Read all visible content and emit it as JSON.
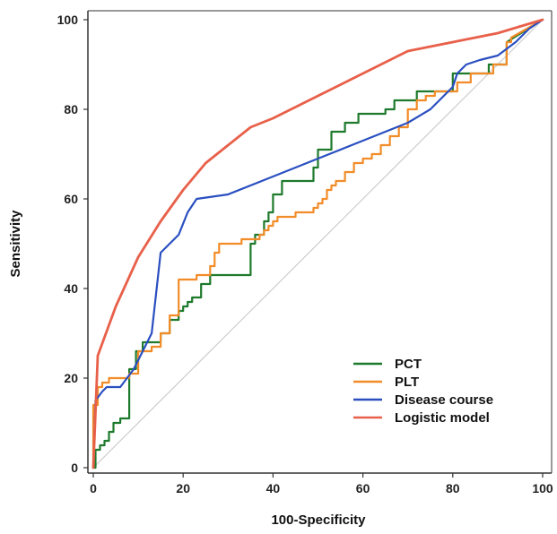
{
  "chart_data": {
    "type": "line",
    "title": "",
    "xlabel": "100-Specificity",
    "ylabel": "Sensitivity",
    "xlim": [
      0,
      100
    ],
    "ylim": [
      0,
      100
    ],
    "xticks": [
      "0",
      "20",
      "40",
      "60",
      "80",
      "100"
    ],
    "yticks": [
      "0",
      "20",
      "40",
      "60",
      "80",
      "100"
    ],
    "grid": false,
    "legend_position": "bottom-right",
    "reference_line": {
      "x": [
        0,
        100
      ],
      "y": [
        0,
        100
      ],
      "color": "#cccccc"
    },
    "series": [
      {
        "name": "PCT",
        "color": "#1e7a2c",
        "x": [
          0,
          0.5,
          0.5,
          1.5,
          1.5,
          2.5,
          2.5,
          3.5,
          3.5,
          4.5,
          4.5,
          6,
          6,
          8,
          8,
          9.5,
          9.5,
          11,
          11,
          15,
          15,
          17,
          17,
          19,
          19,
          20,
          20,
          21,
          21,
          22,
          22,
          24,
          24,
          26,
          26,
          27,
          27,
          35,
          35,
          36,
          36,
          38,
          38,
          39,
          39,
          40,
          40,
          42,
          42,
          49,
          49,
          50,
          50,
          53,
          53,
          56,
          56,
          59,
          59,
          65,
          65,
          67,
          67,
          72,
          72,
          75,
          75,
          80,
          80,
          88,
          88,
          92,
          92,
          100
        ],
        "y": [
          0,
          0,
          4,
          4,
          5,
          5,
          6,
          6,
          8,
          8,
          10,
          10,
          11,
          11,
          22,
          22,
          26,
          26,
          28,
          28,
          30,
          30,
          33,
          33,
          35,
          35,
          36,
          36,
          37,
          37,
          38,
          38,
          41,
          41,
          43,
          43,
          43,
          43,
          50,
          50,
          52,
          52,
          55,
          55,
          57,
          57,
          61,
          61,
          64,
          64,
          67,
          67,
          71,
          71,
          75,
          75,
          77,
          77,
          79,
          79,
          80,
          80,
          82,
          82,
          84,
          84,
          84,
          84,
          88,
          88,
          90,
          90,
          95,
          100
        ]
      },
      {
        "name": "PLT",
        "color": "#f28c28",
        "x": [
          0,
          0,
          1,
          1,
          2,
          2,
          3.5,
          3.5,
          8,
          8,
          10,
          10,
          13,
          13,
          15,
          15,
          17,
          17,
          19,
          19,
          23,
          23,
          26,
          26,
          27,
          27,
          28,
          28,
          33,
          33,
          37,
          37,
          38,
          38,
          39,
          39,
          40,
          40,
          41,
          41,
          43,
          43,
          45,
          45,
          49,
          49,
          50,
          50,
          51,
          51,
          52,
          52,
          53,
          53,
          54,
          54,
          56,
          56,
          58,
          58,
          60,
          60,
          62,
          62,
          64,
          64,
          66,
          66,
          68,
          68,
          70,
          70,
          72,
          72,
          74,
          74,
          76,
          76,
          81,
          81,
          84,
          84,
          89,
          89,
          92,
          92,
          93,
          93,
          100
        ],
        "y": [
          0,
          14,
          14,
          18,
          18,
          19,
          19,
          20,
          20,
          21,
          21,
          26,
          26,
          27,
          27,
          30,
          30,
          34,
          34,
          42,
          42,
          43,
          43,
          45,
          45,
          48,
          48,
          50,
          50,
          51,
          51,
          52,
          52,
          53,
          53,
          54,
          54,
          55,
          55,
          56,
          56,
          56,
          56,
          57,
          57,
          58,
          58,
          59,
          59,
          60,
          60,
          62,
          62,
          63,
          63,
          64,
          64,
          66,
          66,
          68,
          68,
          69,
          69,
          70,
          70,
          72,
          72,
          74,
          74,
          76,
          76,
          80,
          80,
          82,
          82,
          83,
          83,
          84,
          84,
          86,
          86,
          88,
          88,
          90,
          90,
          95,
          95,
          96,
          100
        ]
      },
      {
        "name": "Disease course",
        "color": "#2a4fc0",
        "x": [
          0,
          0.5,
          2,
          3,
          6,
          9,
          13,
          15,
          19,
          21,
          23,
          30,
          40,
          50,
          60,
          70,
          75,
          80,
          81,
          83,
          86,
          90,
          94,
          97,
          100
        ],
        "y": [
          0,
          15,
          17,
          18,
          18,
          22,
          30,
          48,
          52,
          57,
          60,
          61,
          65,
          69,
          73,
          77,
          80,
          85,
          88,
          90,
          91,
          92,
          95,
          98,
          100
        ]
      },
      {
        "name": "Logistic model",
        "color": "#e8604a",
        "x": [
          0,
          1,
          5,
          10,
          15,
          20,
          25,
          30,
          35,
          40,
          50,
          60,
          70,
          80,
          90,
          100
        ],
        "y": [
          0,
          25,
          36,
          47,
          55,
          62,
          68,
          72,
          76,
          78,
          83,
          88,
          93,
          95,
          97,
          100
        ]
      }
    ]
  }
}
